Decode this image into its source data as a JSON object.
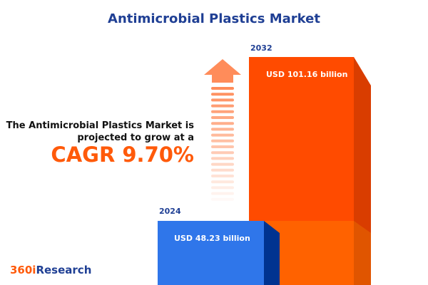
{
  "title": "Antimicrobial Plastics Market",
  "description": [
    "The Antimicrobial Plastics Market is",
    "projected to grow at a"
  ],
  "cagr_label": "CAGR 9.70%",
  "logo": {
    "part1": "360i",
    "part2": "Research"
  },
  "colors": {
    "title": "#1f3f94",
    "bar_2024": "#2f76ea",
    "bar_2032": "#ff4b00",
    "accent": "#ff5a0a"
  },
  "chart_data": {
    "type": "bar",
    "categories": [
      "2024",
      "2032"
    ],
    "values": [
      48.23,
      101.16
    ],
    "labels": [
      "USD 48.23 billion",
      "USD 101.16  billion"
    ],
    "unit": "USD billion",
    "cagr_percent": 9.7
  }
}
